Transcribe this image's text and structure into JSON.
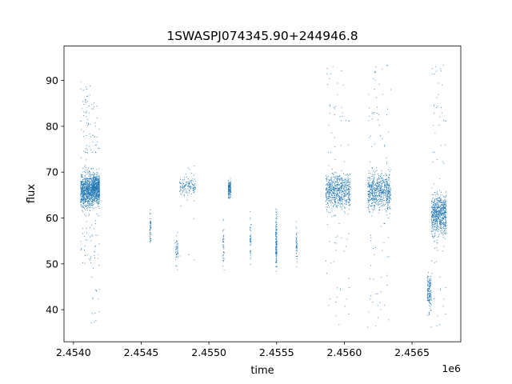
{
  "chart_data": {
    "type": "scatter",
    "title": "1SWASPJ074345.90+244946.8",
    "xlabel": "time",
    "ylabel": "flux",
    "x_offset_label": "1e6",
    "xlim": [
      2.45393,
      2.45686
    ],
    "ylim": [
      33.0,
      97.5
    ],
    "x_ticks": [
      2.454,
      2.4545,
      2.455,
      2.4555,
      2.456,
      2.4565
    ],
    "x_tick_labels": [
      "2.4540",
      "2.4545",
      "2.4550",
      "2.4555",
      "2.4560",
      "2.4565"
    ],
    "y_ticks": [
      40,
      50,
      60,
      70,
      80,
      90
    ],
    "y_tick_labels": [
      "40",
      "50",
      "60",
      "70",
      "80",
      "90"
    ],
    "grid": false,
    "legend": "none",
    "marker_color": "#1f77b4",
    "clusters": [
      {
        "x_range": [
          2.45405,
          2.45413
        ],
        "y_center": 66,
        "y_spread": 2.5,
        "outlier_range": [
          50,
          90
        ],
        "density": "high"
      },
      {
        "x_range": [
          2.45413,
          2.45419
        ],
        "y_center": 66.5,
        "y_spread": 2.2,
        "outlier_range": [
          37,
          86
        ],
        "density": "high"
      },
      {
        "x_range": [
          2.45456,
          2.45457
        ],
        "y_center": 58,
        "y_spread": 2,
        "outlier_range": [
          54,
          62
        ],
        "density": "low"
      },
      {
        "x_range": [
          2.45475,
          2.45477
        ],
        "y_center": 53,
        "y_spread": 2,
        "outlier_range": [
          48,
          57
        ],
        "density": "low"
      },
      {
        "x_range": [
          2.45478,
          2.4549
        ],
        "y_center": 67,
        "y_spread": 1.5,
        "outlier_range": [
          50,
          79
        ],
        "density": "medium"
      },
      {
        "x_range": [
          2.45514,
          2.45516
        ],
        "y_center": 66.5,
        "y_spread": 1,
        "outlier_range": [
          64,
          68
        ],
        "density": "medium"
      },
      {
        "x_range": [
          2.4551,
          2.45511
        ],
        "y_center": 54,
        "y_spread": 3,
        "outlier_range": [
          48,
          60
        ],
        "density": "low"
      },
      {
        "x_range": [
          2.4553,
          2.45531
        ],
        "y_center": 55,
        "y_spread": 3,
        "outlier_range": [
          48,
          63
        ],
        "density": "low"
      },
      {
        "x_range": [
          2.45549,
          2.4555
        ],
        "y_center": 55,
        "y_spread": 4,
        "outlier_range": [
          47,
          62
        ],
        "density": "medium"
      },
      {
        "x_range": [
          2.45564,
          2.45565
        ],
        "y_center": 54,
        "y_spread": 2.5,
        "outlier_range": [
          49,
          60
        ],
        "density": "low"
      },
      {
        "x_range": [
          2.45586,
          2.45604
        ],
        "y_center": 66,
        "y_spread": 2.8,
        "outlier_range": [
          36,
          94
        ],
        "density": "high"
      },
      {
        "x_range": [
          2.45617,
          2.45634
        ],
        "y_center": 66,
        "y_spread": 2.8,
        "outlier_range": [
          36,
          94
        ],
        "density": "high"
      },
      {
        "x_range": [
          2.45661,
          2.45664
        ],
        "y_center": 44,
        "y_spread": 2.5,
        "outlier_range": [
          38,
          48
        ],
        "density": "medium"
      },
      {
        "x_range": [
          2.45664,
          2.45675
        ],
        "y_center": 61,
        "y_spread": 3,
        "outlier_range": [
          36,
          94
        ],
        "density": "high"
      }
    ]
  }
}
